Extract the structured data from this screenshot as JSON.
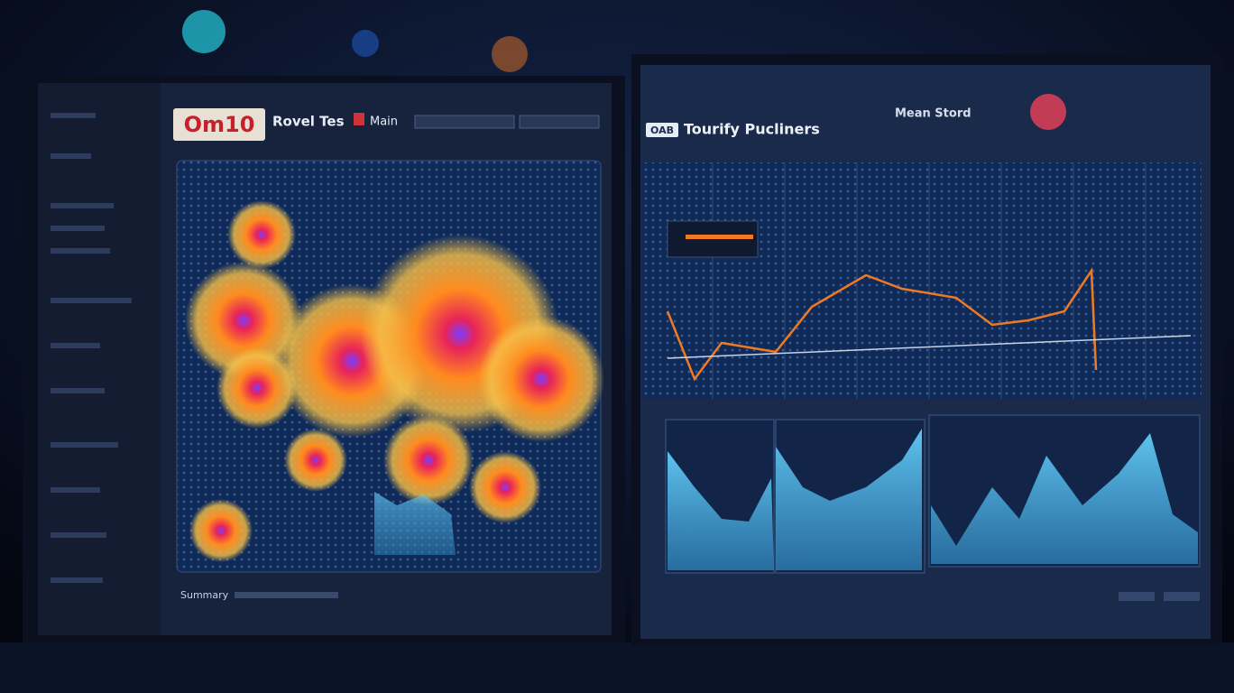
{
  "left": {
    "logo": "Om10",
    "title": "Rovel Tes",
    "badge": "Main",
    "footer": "Summary"
  },
  "right": {
    "logo": "OAB",
    "title": "Tourify Pucliners",
    "label": "Mean Stord"
  }
}
